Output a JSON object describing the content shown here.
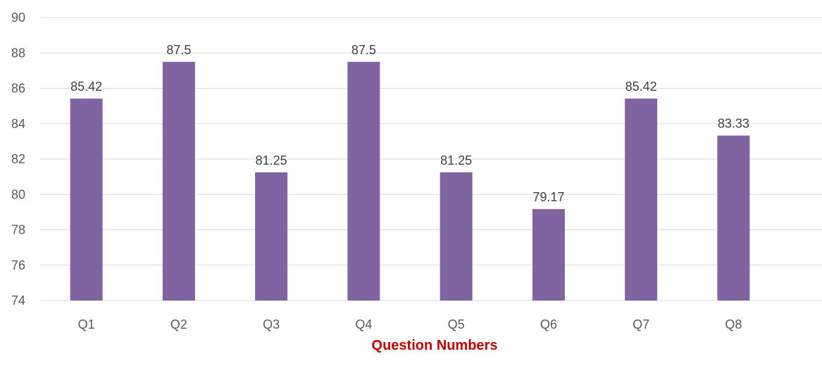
{
  "chart_data": {
    "type": "bar",
    "title": "",
    "xlabel": "Question Numbers",
    "ylabel": "",
    "categories": [
      "Q1",
      "Q2",
      "Q3",
      "Q4",
      "Q5",
      "Q6",
      "Q7",
      "Q8"
    ],
    "values": [
      85.42,
      87.5,
      81.25,
      87.5,
      81.25,
      79.17,
      85.42,
      83.33
    ],
    "data_labels": [
      "85.42",
      "87.5",
      "81.25",
      "87.5",
      "81.25",
      "79.17",
      "85.42",
      "83.33"
    ],
    "ylim": [
      74,
      90
    ],
    "yticks": [
      74,
      76,
      78,
      80,
      82,
      84,
      86,
      88,
      90
    ],
    "grid": true,
    "legend": "none",
    "bar_color": "#8064a2",
    "xlabel_color": "#c00000"
  }
}
